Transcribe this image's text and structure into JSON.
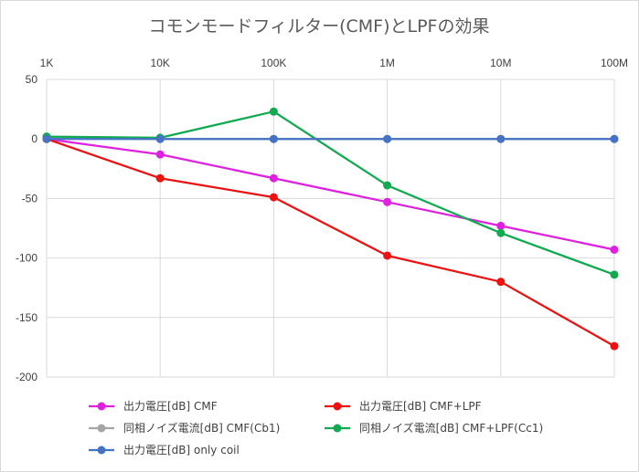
{
  "chart_data": {
    "type": "line",
    "title": "コモンモードフィルター(CMF)とLPFの効果",
    "categories": [
      "1K",
      "10K",
      "100K",
      "1M",
      "10M",
      "100M"
    ],
    "ylim": [
      -200,
      50
    ],
    "yticks": [
      50,
      0,
      -50,
      -100,
      -150,
      -200
    ],
    "ytick_labels": [
      "50",
      "0",
      "-50",
      "-100",
      "-150",
      "-200"
    ],
    "grid": true,
    "legend_position": "bottom",
    "series": [
      {
        "name": "出力電圧[dB] CMF",
        "color": "#e020e0",
        "values": [
          0,
          -13,
          -33,
          -53,
          -73,
          -93
        ]
      },
      {
        "name": "出力電圧[dB] CMF+LPF",
        "color": "#ee1111",
        "values": [
          0,
          -33,
          -49,
          -98,
          -120,
          -174
        ]
      },
      {
        "name": "同相ノイズ電流[dB] CMF(Cb1)",
        "color": "#a5a5a5",
        "values": [
          1,
          0,
          0,
          0,
          0,
          0
        ]
      },
      {
        "name": "同相ノイズ電流[dB] CMF+LPF(Cc1)",
        "color": "#11aa50",
        "values": [
          2,
          1,
          23,
          -39,
          -79,
          -114
        ]
      },
      {
        "name": "出力電圧[dB] only coil",
        "color": "#4472c4",
        "values": [
          0,
          0,
          0,
          0,
          0,
          0
        ]
      }
    ]
  }
}
